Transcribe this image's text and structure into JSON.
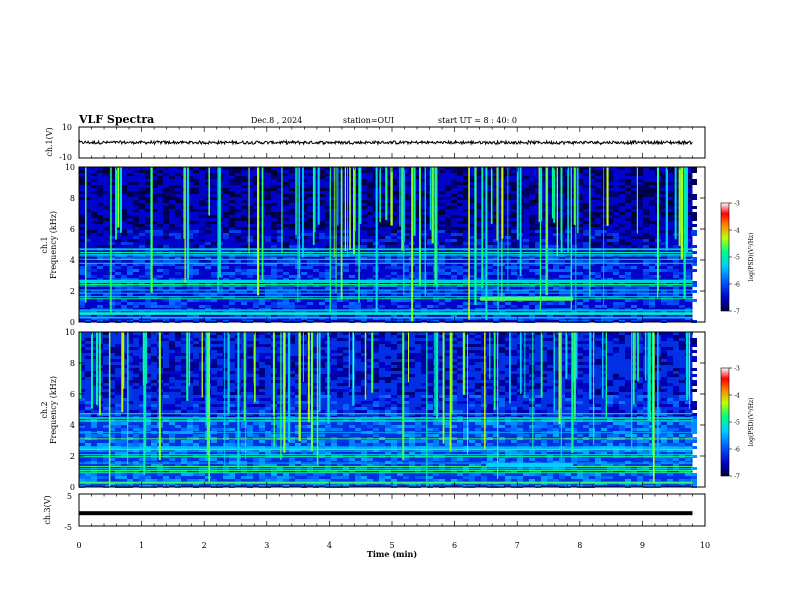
{
  "header": {
    "title": "VLF Spectra",
    "date": "Dec.8 , 2024",
    "station": "station=OUI",
    "start_ut": "start UT = 8 : 40: 0"
  },
  "colors": {
    "background": "#ffffff",
    "axis": "#000000",
    "spectrum_floor": "#0a0f5c",
    "waveform": "#000000"
  },
  "chart_data": [
    {
      "type": "line",
      "panel": "ch1-waveform",
      "ylabel": "ch.1(V)",
      "ylim": [
        -10,
        10
      ],
      "yticks": [
        "10",
        "-10"
      ],
      "xlim": [
        0,
        10
      ],
      "trace_center": 0,
      "trace_amplitude_approx": 1.2,
      "trace_end_min": 9.8
    },
    {
      "type": "heatmap",
      "panel": "ch1-spectrogram",
      "ylabel_channel": "ch.1",
      "ylabel": "Frequency (kHz)",
      "ylim": [
        0,
        10
      ],
      "yticks": [
        "0",
        "2",
        "4",
        "6",
        "8",
        "10"
      ],
      "xlim": [
        0,
        10
      ],
      "data_end_min": 9.8,
      "colorbar": {
        "label": "log(PSD)(V²/Hz)",
        "ticks": [
          "-3",
          "-4",
          "-5",
          "-6",
          "-7"
        ],
        "range": [
          -7,
          -3
        ]
      },
      "noise_floor_log_psd": -6.5,
      "bright_band": {
        "freq_khz": 1.5,
        "t_start_min": 6.4,
        "t_end_min": 7.9,
        "log_psd": -4.6
      }
    },
    {
      "type": "heatmap",
      "panel": "ch2-spectrogram",
      "ylabel_channel": "ch.2",
      "ylabel": "Frequency (kHz)",
      "ylim": [
        0,
        10
      ],
      "yticks": [
        "0",
        "2",
        "4",
        "6",
        "8",
        "10"
      ],
      "xlim": [
        0,
        10
      ],
      "data_end_min": 9.8,
      "colorbar": {
        "label": "log(PSD)(V²/Hz)",
        "ticks": [
          "-3",
          "-4",
          "-5",
          "-6",
          "-7"
        ],
        "range": [
          -7,
          -3
        ]
      },
      "noise_floor_log_psd": -6.2,
      "bright_band": {
        "freq_khz": 1.4,
        "t_start_min": 6.5,
        "t_end_min": 7.9,
        "log_psd": -5.3
      }
    },
    {
      "type": "line",
      "panel": "ch3-waveform",
      "ylabel": "ch.3(V)",
      "ylim": [
        -5,
        5
      ],
      "yticks": [
        "5",
        "-5"
      ],
      "xlim": [
        0,
        10
      ],
      "trace_level": -1,
      "trace_end_min": 9.8
    }
  ],
  "x_axis": {
    "xlabel": "Time (min)",
    "ticks": [
      "0",
      "1",
      "2",
      "3",
      "4",
      "5",
      "6",
      "7",
      "8",
      "9",
      "10"
    ]
  }
}
